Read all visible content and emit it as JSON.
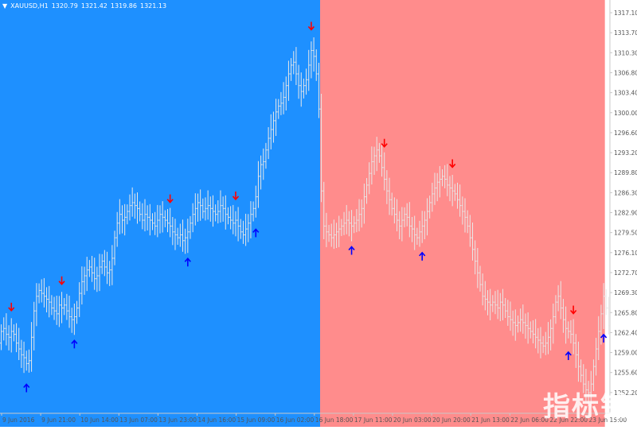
{
  "header": {
    "menu_glyph": "▼",
    "symbol": "XAUUSD,H1",
    "open": "1320.79",
    "high": "1321.42",
    "low": "1319.86",
    "close": "1321.13"
  },
  "watermark": "指标铺",
  "colors": {
    "bg_bear": "#1e90ff",
    "bg_bull": "#ff8c8c",
    "bars": "#e8e8e8",
    "arrow_up": "#0000ff",
    "arrow_down": "#ff0000",
    "axis_text": "#555555"
  },
  "chart_data": {
    "type": "ohlc",
    "timeframe": "H1",
    "ylim": [
      1250.0,
      1319.0
    ],
    "y_ticks": [
      "1317.10",
      "1313.70",
      "1310.30",
      "1306.80",
      "1303.40",
      "1300.00",
      "1296.60",
      "1293.20",
      "1289.80",
      "1286.30",
      "1282.90",
      "1279.50",
      "1276.10",
      "1272.70",
      "1269.30",
      "1265.80",
      "1262.40",
      "1259.00",
      "1255.60",
      "1252.20"
    ],
    "x_ticks": [
      "9 Jun 2016",
      "9 Jun 21:00",
      "10 Jun 14:00",
      "13 Jun 07:00",
      "13 Jun 23:00",
      "14 Jun 16:00",
      "15 Jun 09:00",
      "16 Jun 02:00",
      "16 Jun 18:00",
      "17 Jun 11:00",
      "20 Jun 03:00",
      "20 Jun 20:00",
      "21 Jun 13:00",
      "22 Jun 06:00",
      "22 Jun 22:00",
      "23 Jun 15:00"
    ],
    "background_regions": [
      {
        "state": "bearish",
        "from_bar": 0,
        "to_bar": 126
      },
      {
        "state": "bullish",
        "from_bar": 127,
        "to_bar": 239
      }
    ],
    "signals_up_bars": [
      10,
      29,
      74,
      101,
      139,
      167,
      225,
      239
    ],
    "signals_down_bars": [
      4,
      24,
      67,
      93,
      123,
      152,
      179,
      227
    ],
    "close": [
      1264.0,
      1264.5,
      1263.5,
      1263.0,
      1264.0,
      1263.5,
      1262.0,
      1261.0,
      1260.0,
      1259.5,
      1258.5,
      1259.0,
      1263.0,
      1267.5,
      1270.0,
      1271.0,
      1270.5,
      1270.0,
      1269.5,
      1269.0,
      1268.0,
      1267.5,
      1267.0,
      1268.5,
      1268.0,
      1268.5,
      1267.5,
      1266.5,
      1266.0,
      1266.5,
      1268.0,
      1270.5,
      1272.5,
      1273.5,
      1274.5,
      1275.0,
      1274.0,
      1273.0,
      1273.5,
      1275.0,
      1276.0,
      1275.0,
      1274.0,
      1274.5,
      1276.5,
      1280.0,
      1282.5,
      1284.0,
      1283.0,
      1283.5,
      1284.5,
      1285.5,
      1286.0,
      1285.5,
      1285.0,
      1284.0,
      1283.0,
      1284.0,
      1283.5,
      1283.0,
      1282.5,
      1282.0,
      1283.0,
      1284.0,
      1283.5,
      1283.0,
      1282.5,
      1282.0,
      1281.0,
      1280.5,
      1280.0,
      1280.5,
      1279.5,
      1280.0,
      1281.0,
      1282.5,
      1284.0,
      1285.0,
      1286.0,
      1285.5,
      1284.5,
      1285.0,
      1285.5,
      1285.0,
      1284.5,
      1284.0,
      1284.5,
      1285.5,
      1285.0,
      1284.0,
      1283.5,
      1283.0,
      1282.5,
      1283.0,
      1282.0,
      1281.0,
      1280.5,
      1281.5,
      1282.5,
      1284.0,
      1285.0,
      1287.0,
      1290.5,
      1292.5,
      1293.0,
      1295.0,
      1297.0,
      1298.5,
      1300.0,
      1301.5,
      1302.5,
      1303.0,
      1304.0,
      1306.0,
      1308.0,
      1309.5,
      1310.0,
      1308.0,
      1306.0,
      1305.0,
      1306.0,
      1307.0,
      1309.5,
      1312.0,
      1311.0,
      1308.0,
      1302.0,
      1288.0,
      1282.0,
      1281.0,
      1280.5,
      1280.0,
      1280.5,
      1281.0,
      1281.5,
      1282.0,
      1282.5,
      1283.0,
      1282.5,
      1282.0,
      1282.5,
      1283.0,
      1284.0,
      1285.0,
      1287.0,
      1289.0,
      1291.0,
      1293.0,
      1294.0,
      1295.0,
      1294.0,
      1292.0,
      1290.0,
      1288.0,
      1286.5,
      1285.0,
      1284.0,
      1283.0,
      1282.0,
      1283.0,
      1284.0,
      1283.5,
      1282.0,
      1281.5,
      1280.5,
      1280.0,
      1281.0,
      1282.0,
      1283.0,
      1284.5,
      1286.0,
      1287.5,
      1288.5,
      1289.5,
      1290.0,
      1290.5,
      1290.0,
      1289.0,
      1288.5,
      1288.0,
      1287.5,
      1286.5,
      1285.5,
      1284.5,
      1283.5,
      1282.0,
      1280.0,
      1278.0,
      1276.0,
      1274.0,
      1272.0,
      1270.0,
      1269.5,
      1269.0,
      1268.5,
      1269.0,
      1268.5,
      1268.0,
      1269.0,
      1268.5,
      1267.5,
      1266.5,
      1266.0,
      1265.5,
      1265.0,
      1265.5,
      1266.0,
      1265.5,
      1265.0,
      1264.5,
      1264.0,
      1263.5,
      1263.0,
      1262.5,
      1262.0,
      1261.5,
      1262.0,
      1263.0,
      1264.5,
      1266.5,
      1269.0,
      1270.0,
      1268.0,
      1266.0,
      1264.5,
      1264.0,
      1263.5,
      1262.0,
      1260.0,
      1258.0,
      1256.5,
      1255.0,
      1254.0,
      1253.5,
      1255.0,
      1258.0,
      1261.0,
      1264.0,
      1267.0,
      1270.0,
      1268.0,
      1265.0
    ],
    "open": [
      1262.0,
      1264.0,
      1264.5,
      1263.5,
      1263.0,
      1264.0,
      1263.5,
      1262.0,
      1261.0,
      1260.0,
      1259.5,
      1258.5,
      1259.0,
      1263.0,
      1267.5,
      1270.0,
      1271.0,
      1270.5,
      1270.0,
      1269.5,
      1269.0,
      1268.0,
      1267.5,
      1267.0,
      1268.5,
      1268.0,
      1268.5,
      1267.5,
      1266.5,
      1266.0,
      1266.5,
      1268.0,
      1270.5,
      1272.5,
      1273.5,
      1274.5,
      1275.0,
      1274.0,
      1273.0,
      1273.5,
      1275.0,
      1276.0,
      1275.0,
      1274.0,
      1274.5,
      1276.5,
      1280.0,
      1282.5,
      1284.0,
      1283.0,
      1283.5,
      1284.5,
      1285.5,
      1286.0,
      1285.5,
      1285.0,
      1284.0,
      1283.0,
      1284.0,
      1283.5,
      1283.0,
      1282.5,
      1282.0,
      1283.0,
      1284.0,
      1283.5,
      1283.0,
      1282.5,
      1282.0,
      1281.0,
      1280.5,
      1280.0,
      1280.5,
      1279.5,
      1280.0,
      1281.0,
      1282.5,
      1284.0,
      1285.0,
      1286.0,
      1285.5,
      1284.5,
      1285.0,
      1285.5,
      1285.0,
      1284.5,
      1284.0,
      1284.5,
      1285.5,
      1285.0,
      1284.0,
      1283.5,
      1283.0,
      1282.5,
      1283.0,
      1282.0,
      1281.0,
      1280.5,
      1281.5,
      1282.5,
      1284.0,
      1285.0,
      1287.0,
      1290.5,
      1292.5,
      1293.0,
      1295.0,
      1297.0,
      1298.5,
      1300.0,
      1301.5,
      1302.5,
      1303.0,
      1304.0,
      1306.0,
      1308.0,
      1309.5,
      1310.0,
      1308.0,
      1306.0,
      1305.0,
      1306.0,
      1307.0,
      1309.5,
      1312.0,
      1311.0,
      1308.0,
      1302.0,
      1288.0,
      1282.0,
      1281.0,
      1280.5,
      1280.0,
      1280.5,
      1281.0,
      1281.5,
      1282.0,
      1282.5,
      1283.0,
      1282.5,
      1282.0,
      1282.5,
      1283.0,
      1284.0,
      1285.0,
      1287.0,
      1289.0,
      1291.0,
      1293.0,
      1294.0,
      1295.0,
      1294.0,
      1292.0,
      1290.0,
      1288.0,
      1286.5,
      1285.0,
      1284.0,
      1283.0,
      1282.0,
      1283.0,
      1284.0,
      1283.5,
      1282.0,
      1281.5,
      1280.5,
      1280.0,
      1281.0,
      1282.0,
      1283.0,
      1284.5,
      1286.0,
      1287.5,
      1288.5,
      1289.5,
      1290.0,
      1290.5,
      1290.0,
      1289.0,
      1288.5,
      1288.0,
      1287.5,
      1286.5,
      1285.5,
      1284.5,
      1283.5,
      1282.0,
      1280.0,
      1278.0,
      1276.0,
      1274.0,
      1272.0,
      1270.0,
      1269.5,
      1269.0,
      1268.5,
      1269.0,
      1268.5,
      1268.0,
      1269.0,
      1268.5,
      1267.5,
      1266.5,
      1266.0,
      1265.5,
      1265.0,
      1265.5,
      1266.0,
      1265.5,
      1265.0,
      1264.5,
      1264.0,
      1263.5,
      1263.0,
      1262.5,
      1262.0,
      1261.5,
      1262.0,
      1263.0,
      1264.5,
      1266.5,
      1269.0,
      1270.0,
      1268.0,
      1266.0,
      1264.5,
      1264.0,
      1263.5,
      1262.0,
      1260.0,
      1258.0,
      1256.5,
      1255.0,
      1254.0,
      1253.5,
      1255.0,
      1258.0,
      1261.0,
      1264.0,
      1267.0,
      1270.0,
      1268.0
    ]
  }
}
